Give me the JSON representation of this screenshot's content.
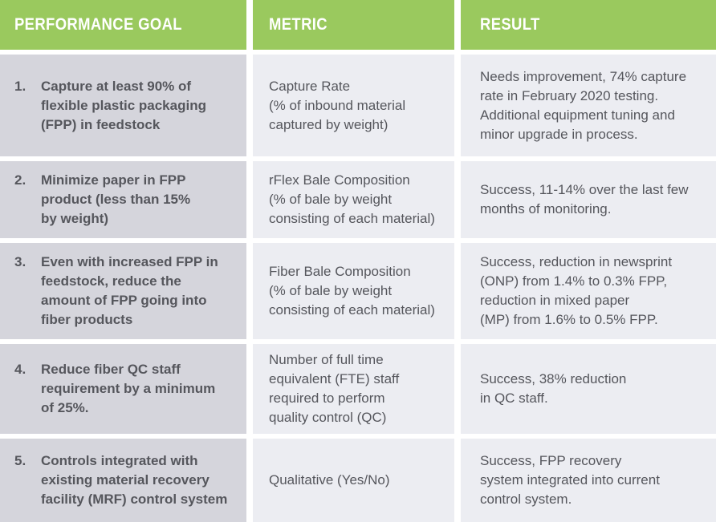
{
  "colors": {
    "header_green": "#9AC95E",
    "header_text": "#FFFFFF",
    "goal_cell_bg": "#D5D5DC",
    "cell_bg": "#ECEDF2",
    "body_text": "#55565C"
  },
  "table": {
    "headers": [
      {
        "label": "PERFORMANCE GOAL"
      },
      {
        "label": "METRIC"
      },
      {
        "label": "RESULT"
      }
    ],
    "rows": [
      {
        "number": "1.",
        "goal": "Capture at least 90% of\nflexible plastic packaging\n(FPP) in feedstock",
        "metric": "Capture Rate\n(% of inbound material\ncaptured by weight)",
        "result": "Needs improvement, 74% capture\nrate in February 2020 testing.\nAdditional equipment tuning and\nminor upgrade in process."
      },
      {
        "number": "2.",
        "goal": "Minimize paper in FPP\nproduct (less than 15%\nby weight)",
        "metric": "rFlex Bale Composition\n(% of bale by weight\nconsisting of each material)",
        "result": "Success, 11-14% over the last few\nmonths of monitoring."
      },
      {
        "number": "3.",
        "goal": "Even with increased FPP in\nfeedstock, reduce the\namount of FPP going into\nfiber products",
        "metric": "Fiber Bale Composition\n(% of bale by weight\nconsisting of each material)",
        "result": "Success, reduction in newsprint\n(ONP) from 1.4% to 0.3% FPP,\nreduction in mixed paper\n(MP) from 1.6% to 0.5% FPP."
      },
      {
        "number": "4.",
        "goal": "Reduce fiber QC staff\nrequirement by a minimum\nof 25%.",
        "metric": "Number of full time\nequivalent (FTE) staff\nrequired to perform\nquality control (QC)",
        "result": "Success, 38% reduction\nin QC staff."
      },
      {
        "number": "5.",
        "goal": "Controls integrated with\nexisting material recovery\nfacility (MRF) control system",
        "metric": "Qualitative (Yes/No)",
        "result": "Success, FPP recovery\nsystem integrated into current\ncontrol system."
      }
    ]
  }
}
